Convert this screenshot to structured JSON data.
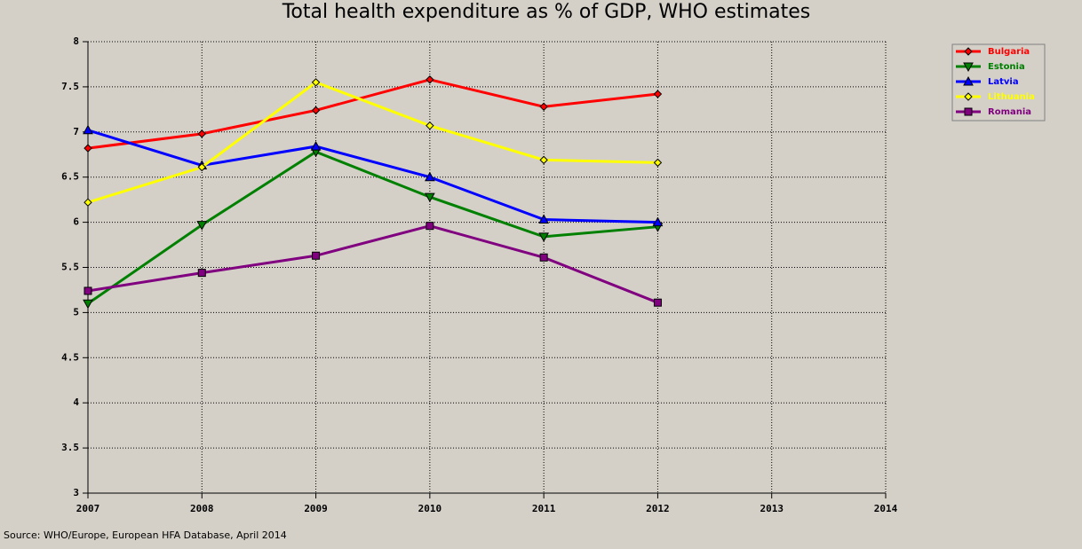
{
  "chart_data": {
    "type": "line",
    "title": "Total health expenditure as % of GDP, WHO estimates",
    "source": "Source: WHO/Europe, European HFA Database, April 2014",
    "x": [
      2007,
      2008,
      2009,
      2010,
      2011,
      2012
    ],
    "xlim": [
      2007,
      2014
    ],
    "xticks": [
      2007,
      2008,
      2009,
      2010,
      2011,
      2012,
      2013,
      2014
    ],
    "ylim": [
      3,
      8
    ],
    "yticks": [
      3,
      3.5,
      4,
      4.5,
      5,
      5.5,
      6,
      6.5,
      7,
      7.5,
      8
    ],
    "grid": true,
    "legend": "top-right",
    "series": [
      {
        "name": "Bulgaria",
        "color": "#ff0000",
        "marker": "diamond",
        "values": [
          6.82,
          6.98,
          7.24,
          7.58,
          7.28,
          7.42
        ]
      },
      {
        "name": "Estonia",
        "color": "#008000",
        "marker": "triangle-down",
        "values": [
          5.1,
          5.97,
          6.78,
          6.28,
          5.84,
          5.95
        ]
      },
      {
        "name": "Latvia",
        "color": "#0000ff",
        "marker": "triangle-up",
        "values": [
          7.02,
          6.63,
          6.84,
          6.5,
          6.03,
          6.0
        ]
      },
      {
        "name": "Lithuania",
        "color": "#ffff00",
        "marker": "diamond-open",
        "values": [
          6.22,
          6.61,
          7.55,
          7.07,
          6.69,
          6.66
        ]
      },
      {
        "name": "Romania",
        "color": "#800080",
        "marker": "square",
        "values": [
          5.24,
          5.44,
          5.63,
          5.96,
          5.61,
          5.11
        ]
      }
    ]
  }
}
